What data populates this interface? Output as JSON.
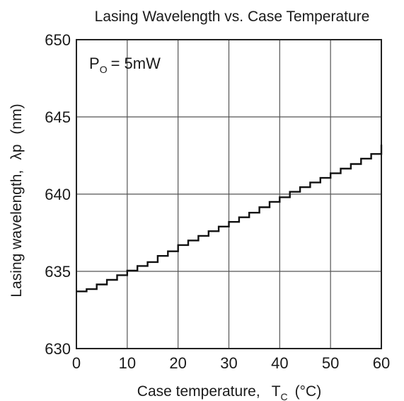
{
  "chart_data": {
    "type": "line",
    "title": "Lasing Wavelength vs. Case Temperature",
    "xlabel": "Case temperature,",
    "xlabel_symbol": "T",
    "xlabel_subscript": "C",
    "xlabel_unit": "(°C)",
    "ylabel": "Lasing wavelength,",
    "ylabel_symbol": "λp",
    "ylabel_unit": "(nm)",
    "annotation": {
      "symbol": "P",
      "subscript": "O",
      "text": "= 5mW"
    },
    "xlim": [
      0,
      60
    ],
    "ylim": [
      630,
      650
    ],
    "x_ticks": [
      "0",
      "10",
      "20",
      "30",
      "40",
      "50",
      "60"
    ],
    "y_ticks": [
      "630",
      "635",
      "640",
      "645",
      "650"
    ],
    "grid": true,
    "line_color": "#111111",
    "series": [
      {
        "x": [
          0,
          2,
          2,
          4,
          4,
          6,
          6,
          8,
          8,
          10,
          10,
          12,
          12,
          14,
          14,
          16,
          16,
          18,
          18,
          20,
          20,
          22,
          22,
          24,
          24,
          26,
          26,
          28,
          28,
          30,
          30,
          32,
          32,
          34,
          34,
          36,
          36,
          38,
          38,
          40,
          40,
          42,
          42,
          44,
          44,
          46,
          46,
          48,
          48,
          50,
          50,
          52,
          52,
          54,
          54,
          56,
          56,
          58,
          58,
          60,
          60
        ],
        "y": [
          633.7,
          633.7,
          633.85,
          633.85,
          634.15,
          634.15,
          634.45,
          634.45,
          634.75,
          634.75,
          635.05,
          635.05,
          635.35,
          635.35,
          635.6,
          635.6,
          636.0,
          636.0,
          636.3,
          636.3,
          636.7,
          636.7,
          637.0,
          637.0,
          637.3,
          637.3,
          637.6,
          637.6,
          637.9,
          637.9,
          638.2,
          638.2,
          638.5,
          638.5,
          638.8,
          638.8,
          639.15,
          639.15,
          639.5,
          639.5,
          639.8,
          639.8,
          640.15,
          640.15,
          640.45,
          640.45,
          640.75,
          640.75,
          641.05,
          641.05,
          641.35,
          641.35,
          641.65,
          641.65,
          641.95,
          641.95,
          642.3,
          642.3,
          642.6,
          642.6,
          643.2
        ]
      }
    ]
  }
}
